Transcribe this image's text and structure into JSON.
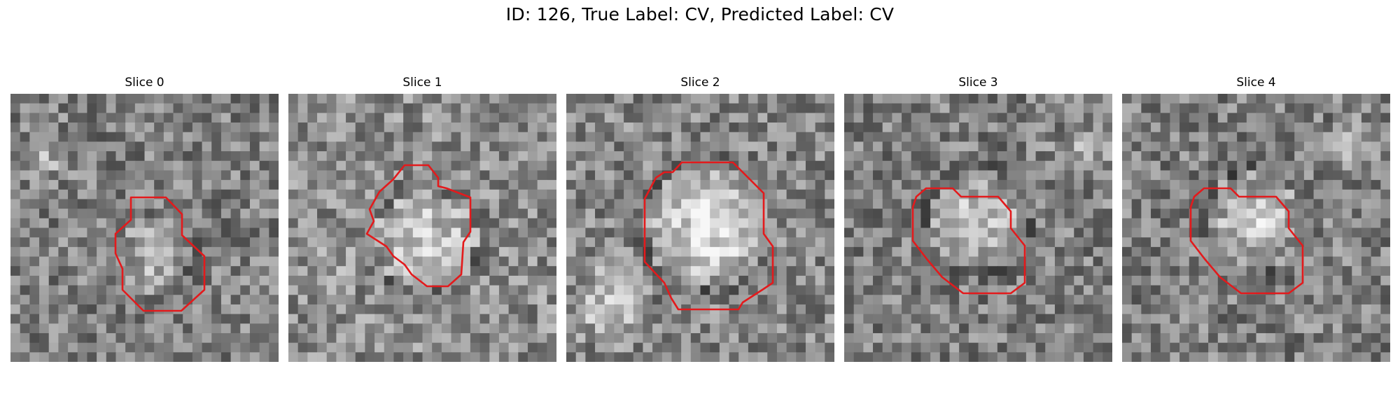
{
  "figure": {
    "title": "ID: 126, True Label: CV, Predicted Label: CV",
    "contour_color": "#e31a1c",
    "grid_size": 28
  },
  "slices": [
    {
      "label": "Slice 0",
      "seed": 11,
      "brightness": 0.5,
      "blob_intensity": 0.16
    },
    {
      "label": "Slice 1",
      "seed": 27,
      "brightness": 0.55,
      "blob_intensity": 0.2
    },
    {
      "label": "Slice 2",
      "seed": 43,
      "brightness": 0.52,
      "blob_intensity": 0.34
    },
    {
      "label": "Slice 3",
      "seed": 59,
      "brightness": 0.5,
      "blob_intensity": 0.24
    },
    {
      "label": "Slice 4",
      "seed": 71,
      "brightness": 0.5,
      "blob_intensity": 0.24
    }
  ]
}
